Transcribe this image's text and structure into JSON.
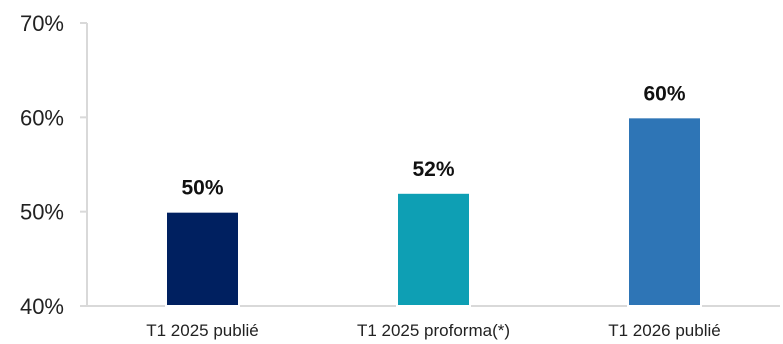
{
  "chart_data": {
    "type": "bar",
    "title": "",
    "xlabel": "",
    "ylabel": "",
    "categories": [
      "T1 2025 publié",
      "T1 2025 proforma(*)",
      "T1 2026 publié"
    ],
    "values": [
      50,
      52,
      60
    ],
    "data_labels": [
      "50%",
      "52%",
      "60%"
    ],
    "bar_colors": [
      "#002060",
      "#0E9FB4",
      "#2E75B6"
    ],
    "ylim": [
      40,
      70
    ],
    "yticks": [
      40,
      50,
      60,
      70
    ],
    "ytick_labels": [
      "40%",
      "50%",
      "60%",
      "70%"
    ],
    "grid": false,
    "legend": "none",
    "axis_color": "#D9D9D9"
  }
}
